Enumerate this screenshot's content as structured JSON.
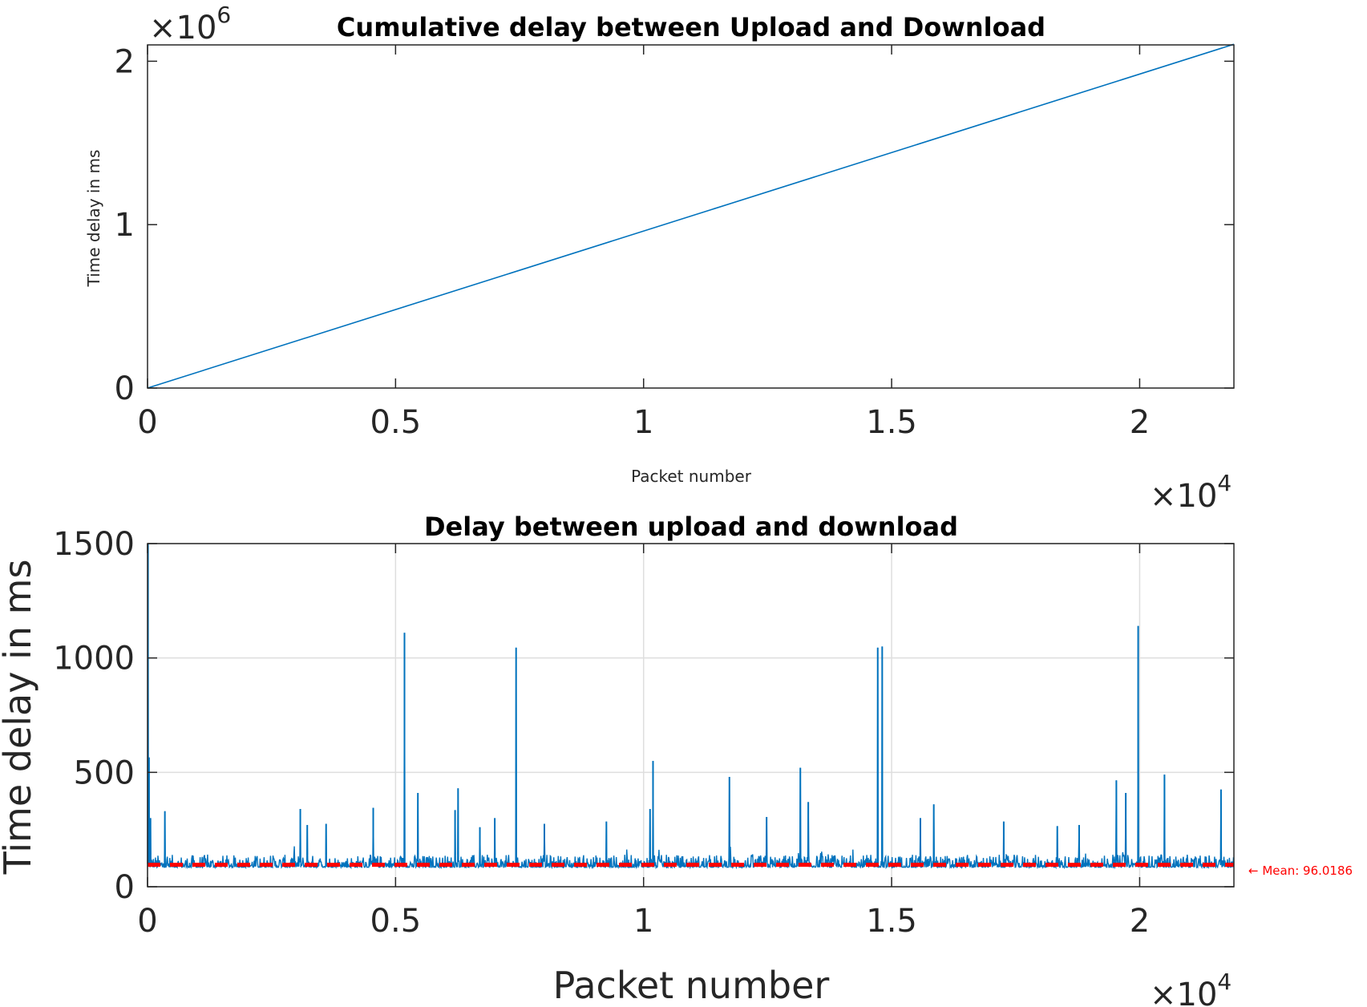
{
  "chart_data": [
    {
      "type": "line",
      "title": "Cumulative delay between Upload and Download",
      "xlabel": "Packet number",
      "ylabel": "Time delay in ms",
      "x_exponent_label": "×10",
      "x_exponent_power": "4",
      "y_exponent_label": "×10",
      "y_exponent_power": "6",
      "xlim": [
        0,
        21900
      ],
      "ylim": [
        0,
        2100000
      ],
      "x_ticks": [
        0,
        5000,
        10000,
        15000,
        20000
      ],
      "x_tick_labels": [
        "0",
        "0.5",
        "1",
        "1.5",
        "2"
      ],
      "y_ticks": [
        0,
        1000000,
        2000000
      ],
      "y_tick_labels": [
        "0",
        "1",
        "2"
      ],
      "grid": false,
      "color": "#0072bd",
      "series": [
        {
          "x": [
            0,
            21900
          ],
          "y": [
            0,
            2104000
          ]
        }
      ]
    },
    {
      "type": "line",
      "title": "Delay between upload and download",
      "xlabel": "Packet number",
      "ylabel": "Time delay in ms",
      "x_exponent_label": "×10",
      "x_exponent_power": "4",
      "xlim": [
        0,
        21900
      ],
      "ylim": [
        0,
        1500
      ],
      "x_ticks": [
        0,
        5000,
        10000,
        15000,
        20000
      ],
      "x_tick_labels": [
        "0",
        "0.5",
        "1",
        "1.5",
        "2"
      ],
      "y_ticks": [
        0,
        500,
        1000,
        1500
      ],
      "y_tick_labels": [
        "0",
        "500",
        "1000",
        "1500"
      ],
      "grid": true,
      "color": "#0072bd",
      "mean_color": "#ff0000",
      "mean_value": 96.0186,
      "mean_label": "← Mean: 96.0186",
      "baseline_range": [
        85,
        140
      ],
      "spikes": [
        {
          "x": 10,
          "y": 1500
        },
        {
          "x": 30,
          "y": 565
        },
        {
          "x": 60,
          "y": 300
        },
        {
          "x": 350,
          "y": 330
        },
        {
          "x": 3080,
          "y": 340
        },
        {
          "x": 3220,
          "y": 270
        },
        {
          "x": 3600,
          "y": 275
        },
        {
          "x": 4550,
          "y": 345
        },
        {
          "x": 5180,
          "y": 1110
        },
        {
          "x": 5450,
          "y": 410
        },
        {
          "x": 6200,
          "y": 335
        },
        {
          "x": 6260,
          "y": 430
        },
        {
          "x": 6700,
          "y": 260
        },
        {
          "x": 7000,
          "y": 300
        },
        {
          "x": 7430,
          "y": 1045
        },
        {
          "x": 8000,
          "y": 275
        },
        {
          "x": 9250,
          "y": 285
        },
        {
          "x": 10130,
          "y": 340
        },
        {
          "x": 10190,
          "y": 550
        },
        {
          "x": 11730,
          "y": 480
        },
        {
          "x": 12480,
          "y": 305
        },
        {
          "x": 13160,
          "y": 520
        },
        {
          "x": 13320,
          "y": 370
        },
        {
          "x": 14720,
          "y": 1045
        },
        {
          "x": 14810,
          "y": 1050
        },
        {
          "x": 15580,
          "y": 300
        },
        {
          "x": 15850,
          "y": 360
        },
        {
          "x": 17260,
          "y": 285
        },
        {
          "x": 18340,
          "y": 265
        },
        {
          "x": 18780,
          "y": 270
        },
        {
          "x": 19530,
          "y": 465
        },
        {
          "x": 19720,
          "y": 410
        },
        {
          "x": 19970,
          "y": 1140
        },
        {
          "x": 20500,
          "y": 490
        },
        {
          "x": 21640,
          "y": 425
        }
      ]
    }
  ]
}
